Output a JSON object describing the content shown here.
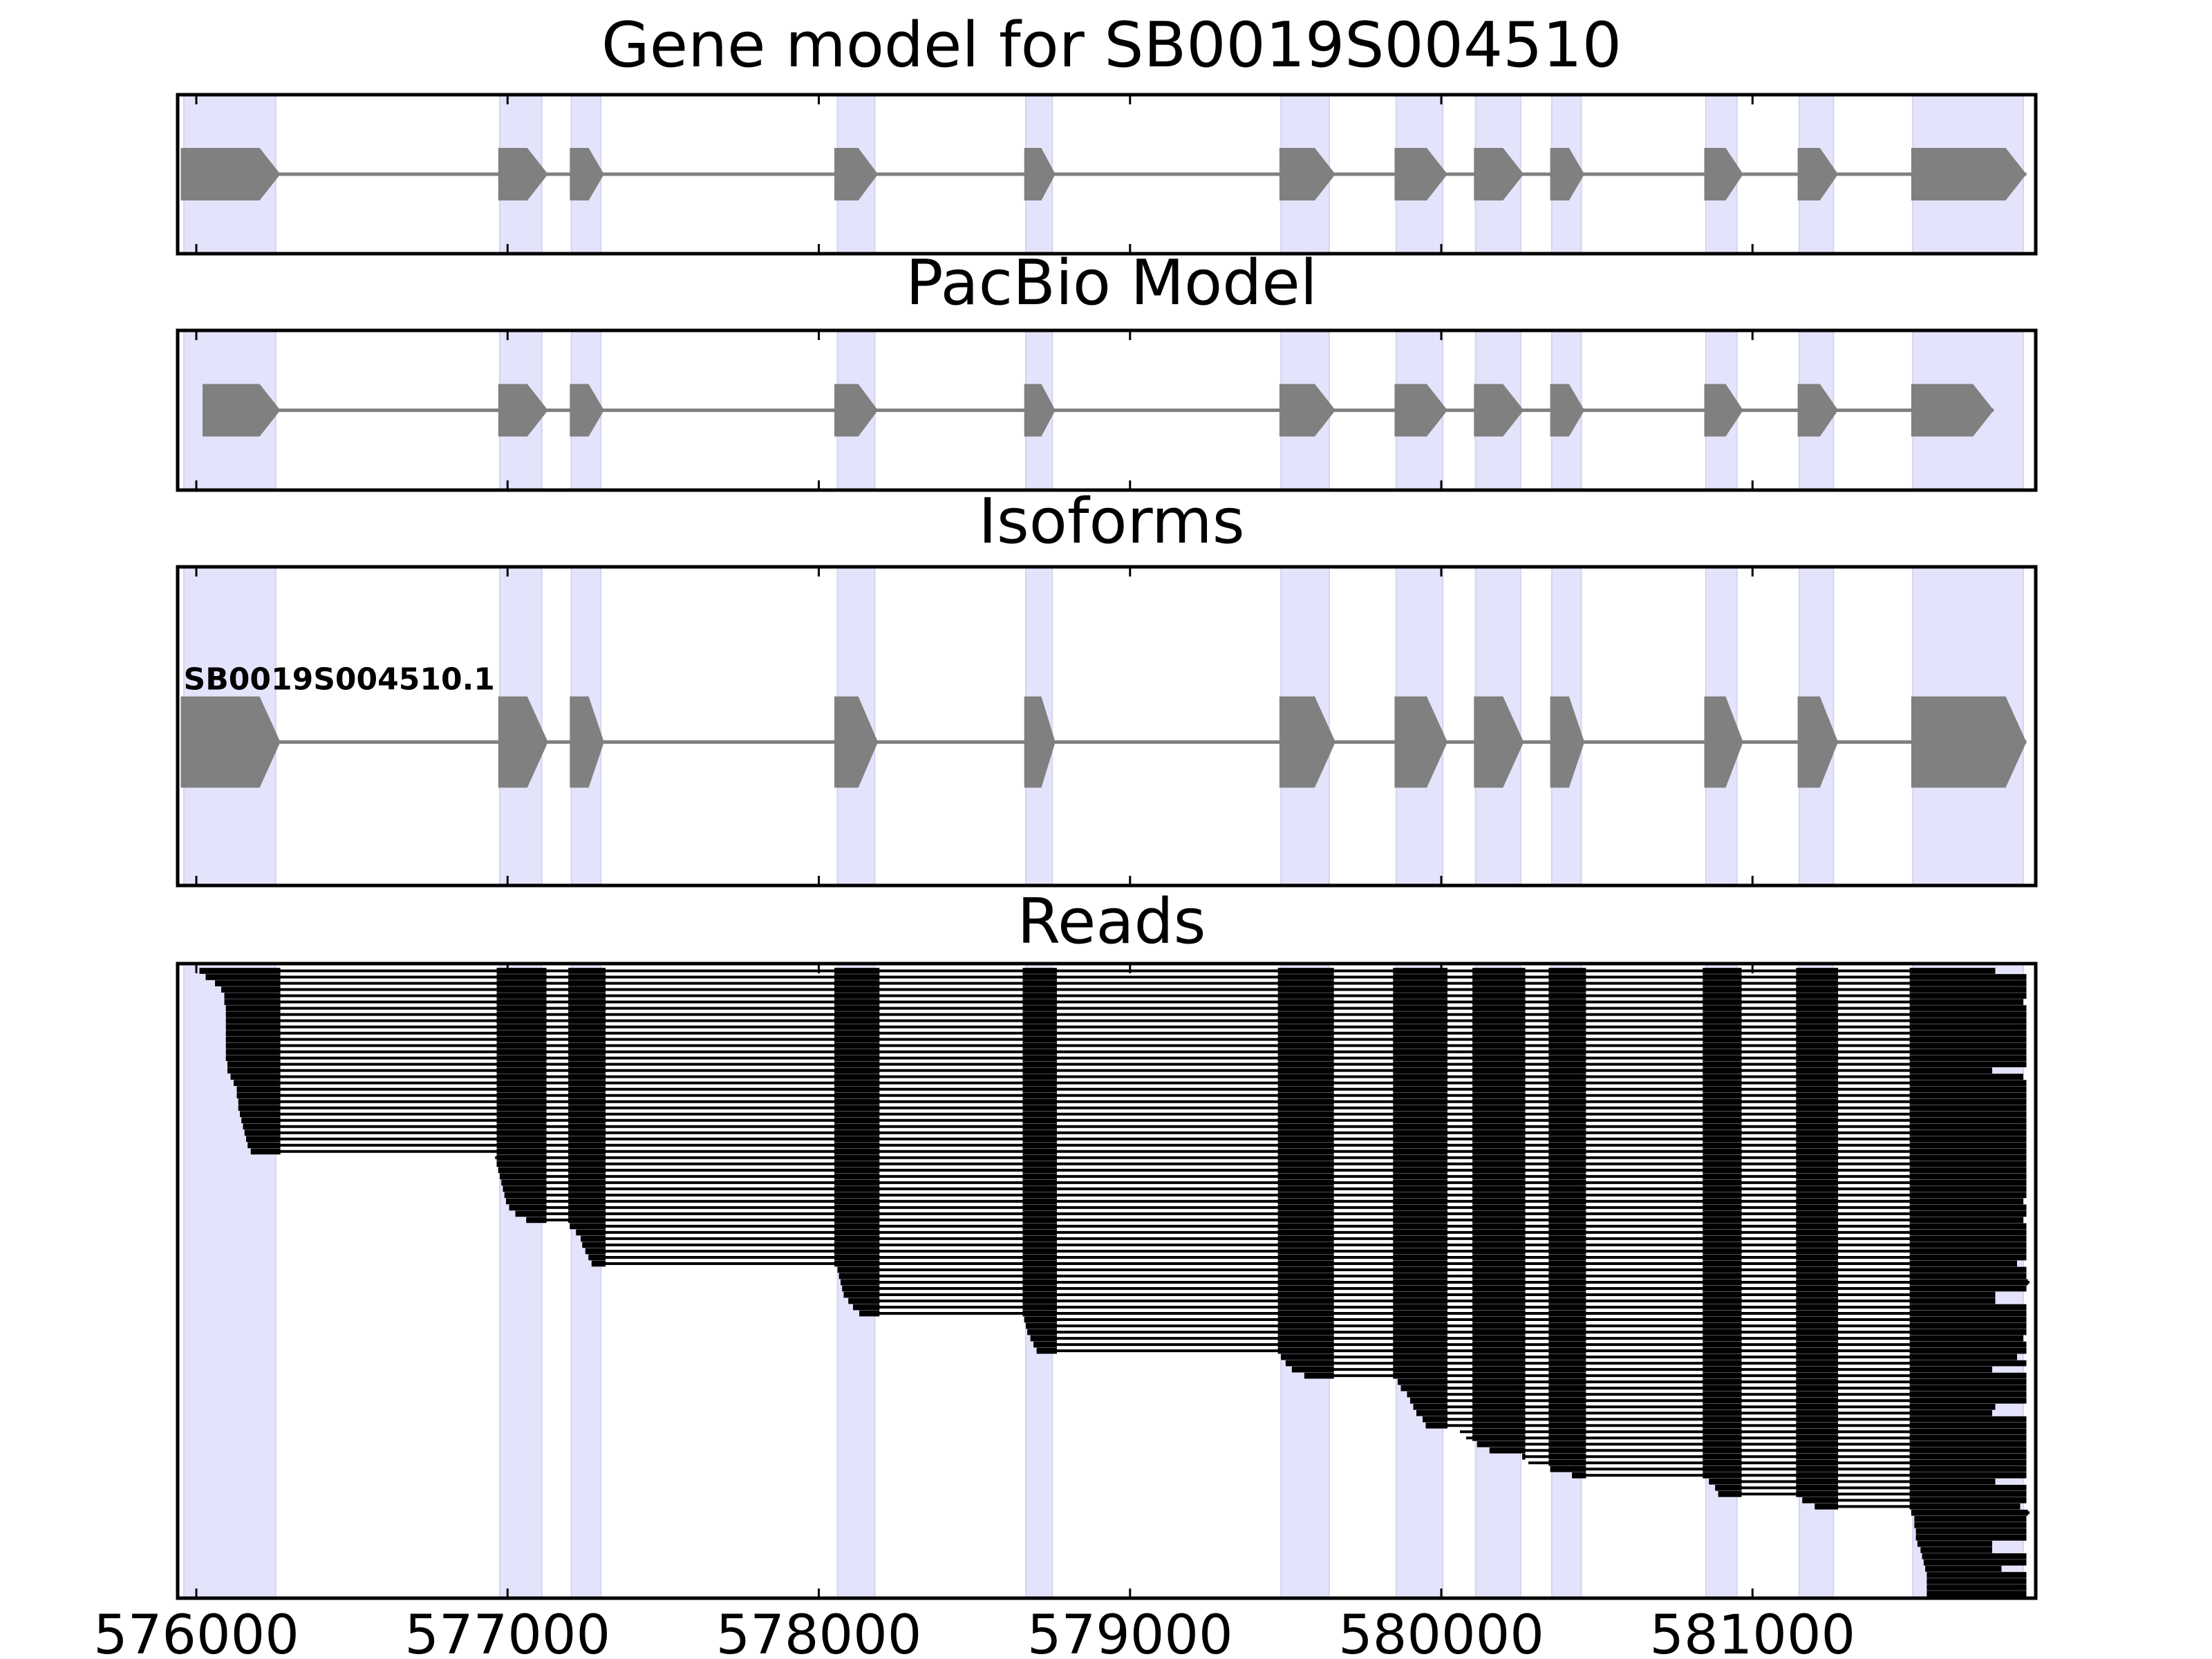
{
  "figure": {
    "colors": {
      "exon_band": "#e3e3fb",
      "model_feature": "#808080",
      "read_feature": "#000000",
      "frame": "#000000"
    }
  },
  "chart_data": {
    "type": "gene-model-track-plot",
    "x_axis": {
      "xlim": [
        575940,
        581910
      ],
      "ticks": [
        576000,
        577000,
        578000,
        579000,
        580000,
        581000
      ],
      "tick_labels": [
        "576000",
        "577000",
        "578000",
        "579000",
        "580000",
        "581000"
      ]
    },
    "exon_bands": [
      [
        575960,
        576255
      ],
      [
        576975,
        577110
      ],
      [
        577205,
        577300
      ],
      [
        578060,
        578180
      ],
      [
        578665,
        578750
      ],
      [
        579485,
        579640
      ],
      [
        579855,
        580005
      ],
      [
        580110,
        580255
      ],
      [
        580355,
        580450
      ],
      [
        580850,
        580950
      ],
      [
        581150,
        581260
      ],
      [
        581515,
        581870
      ]
    ],
    "panels": [
      {
        "title": "Gene model for SB0019S004510",
        "ylim": [
          0,
          1
        ],
        "tracks": [
          {
            "y": 0.5,
            "label": "",
            "exons": [
              [
                575950,
                576270
              ],
              [
                576970,
                577130
              ],
              [
                577200,
                577310
              ],
              [
                578050,
                578190
              ],
              [
                578660,
                578760
              ],
              [
                579480,
                579660
              ],
              [
                579850,
                580020
              ],
              [
                580105,
                580265
              ],
              [
                580350,
                580460
              ],
              [
                580845,
                580970
              ],
              [
                581145,
                581275
              ],
              [
                581510,
                581880
              ]
            ]
          }
        ]
      },
      {
        "title": "PacBio Model",
        "ylim": [
          0,
          1
        ],
        "tracks": [
          {
            "y": 0.5,
            "label": "",
            "exons": [
              [
                576020,
                576270
              ],
              [
                576970,
                577130
              ],
              [
                577200,
                577310
              ],
              [
                578050,
                578190
              ],
              [
                578660,
                578760
              ],
              [
                579480,
                579660
              ],
              [
                579850,
                580020
              ],
              [
                580105,
                580265
              ],
              [
                580350,
                580460
              ],
              [
                580845,
                580970
              ],
              [
                581145,
                581275
              ],
              [
                581510,
                581775
              ]
            ]
          }
        ]
      },
      {
        "title": "Isoforms",
        "ylim": [
          0,
          1
        ],
        "tracks": [
          {
            "y": 0.45,
            "label": "SB0019S004510.1",
            "exons": [
              [
                575950,
                576270
              ],
              [
                576970,
                577130
              ],
              [
                577200,
                577310
              ],
              [
                578050,
                578190
              ],
              [
                578660,
                578760
              ],
              [
                579480,
                579660
              ],
              [
                579850,
                580020
              ],
              [
                580105,
                580265
              ],
              [
                580350,
                580460
              ],
              [
                580845,
                580970
              ],
              [
                581145,
                581275
              ],
              [
                581510,
                581880
              ]
            ]
          }
        ]
      },
      {
        "title": "Reads",
        "read_count": 101,
        "read_starts": [
          576010,
          576030,
          576060,
          576080,
          576090,
          576090,
          576095,
          576095,
          576095,
          576095,
          576095,
          576095,
          576095,
          576095,
          576095,
          576100,
          576100,
          576110,
          576120,
          576130,
          576130,
          576135,
          576135,
          576140,
          576145,
          576150,
          576155,
          576160,
          576165,
          576175,
          576960,
          576965,
          576970,
          576975,
          576980,
          576985,
          576990,
          576995,
          577005,
          577025,
          577060,
          577200,
          577220,
          577235,
          577240,
          577250,
          577260,
          577270,
          578060,
          578065,
          578070,
          578075,
          578080,
          578095,
          578110,
          578130,
          578660,
          578665,
          578670,
          578680,
          578690,
          578700,
          579485,
          579500,
          579520,
          579560,
          579860,
          579870,
          579890,
          579900,
          579910,
          579920,
          579940,
          579950,
          580060,
          580080,
          580115,
          580155,
          580260,
          580280,
          580350,
          580420,
          580860,
          580880,
          580890,
          581160,
          581200,
          581510,
          581520,
          581520,
          581525,
          581525,
          581530,
          581540,
          581545,
          581550,
          581555,
          581560,
          581560,
          581560,
          581560
        ],
        "read_ends": [
          581780,
          581880,
          581880,
          581880,
          581880,
          581870,
          581880,
          581880,
          581880,
          581880,
          581880,
          581880,
          581880,
          581880,
          581880,
          581880,
          581770,
          581870,
          581880,
          581880,
          581880,
          581880,
          581880,
          581880,
          581880,
          581880,
          581880,
          581880,
          581880,
          581880,
          581880,
          581880,
          581880,
          581880,
          581880,
          581880,
          581880,
          581870,
          581880,
          581880,
          581870,
          581880,
          581880,
          581880,
          581880,
          581880,
          581880,
          581850,
          581880,
          581880,
          581890,
          581880,
          581780,
          581780,
          581880,
          581880,
          581880,
          581880,
          581880,
          581870,
          581880,
          581880,
          581850,
          581880,
          581770,
          581880,
          581880,
          581880,
          581880,
          581880,
          581780,
          581770,
          581880,
          581880,
          581880,
          581880,
          581880,
          581880,
          581880,
          581880,
          581880,
          581880,
          581780,
          581880,
          581880,
          581880,
          581860,
          581890,
          581880,
          581880,
          581880,
          581880,
          581770,
          581770,
          581880,
          581880,
          581800,
          581880,
          581880,
          581880,
          581880
        ]
      }
    ]
  }
}
